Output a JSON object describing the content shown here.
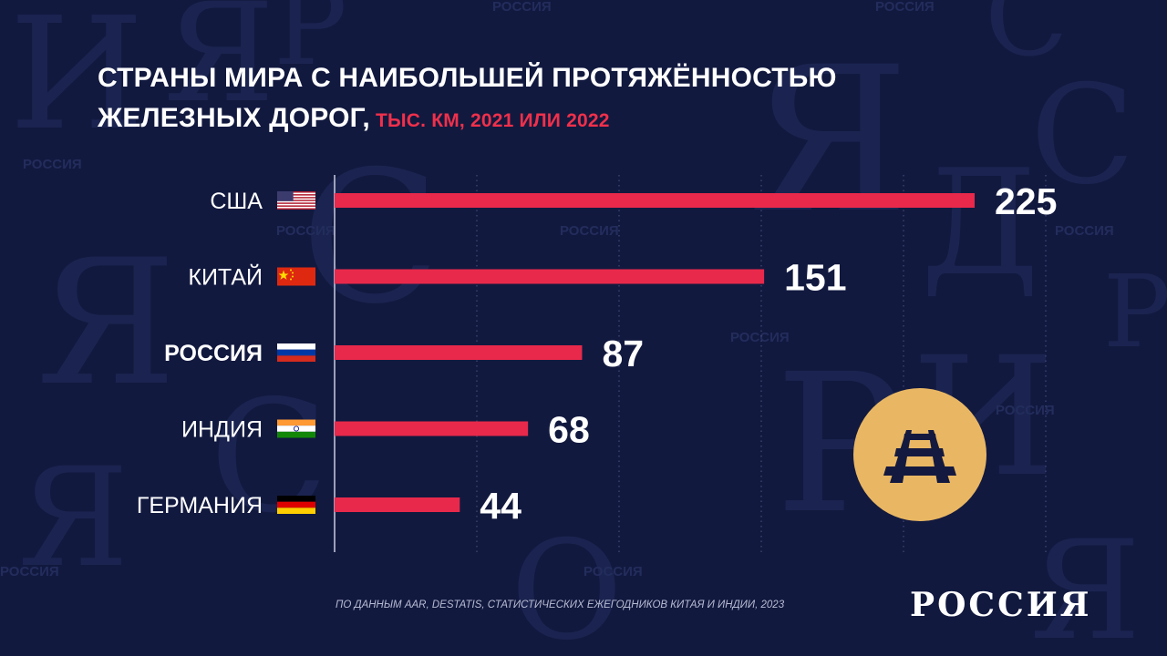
{
  "header": {
    "title_line1": "СТРАНЫ МИРА С НАИБОЛЬШЕЙ ПРОТЯЖЁННОСТЬЮ",
    "title_line2": "ЖЕЛЕЗНЫХ ДОРОГ,",
    "unit": "ТЫС. КМ, 2021 ИЛИ 2022"
  },
  "chart_data": {
    "type": "bar",
    "orientation": "horizontal",
    "categories": [
      "США",
      "КИТАЙ",
      "РОССИЯ",
      "ИНДИЯ",
      "ГЕРМАНИЯ"
    ],
    "values": [
      225,
      151,
      87,
      68,
      44
    ],
    "highlight": "РОССИЯ",
    "title": "СТРАНЫ МИРА С НАИБОЛЬШЕЙ ПРОТЯЖЁННОСТЬЮ ЖЕЛЕЗНЫХ ДОРОГ, ТЫС. КМ, 2021 ИЛИ 2022",
    "xlim": [
      0,
      250
    ],
    "grid": true,
    "bar_color": "#e8294b"
  },
  "icons": {
    "badge": "railway-track-icon",
    "flags": [
      "us-flag-icon",
      "china-flag-icon",
      "russia-flag-icon",
      "india-flag-icon",
      "germany-flag-icon"
    ]
  },
  "source": "ПО ДАННЫМ AAR, DESTATIS, СТАТИСТИЧЕСКИХ ЕЖЕГОДНИКОВ КИТАЯ И ИНДИИ, 2023",
  "logo": "РОССИЯ",
  "watermark": "РОССИЯ",
  "colors": {
    "background": "#12193f",
    "accent": "#f0304b",
    "bar": "#e8294b",
    "badge": "#e9b763"
  }
}
